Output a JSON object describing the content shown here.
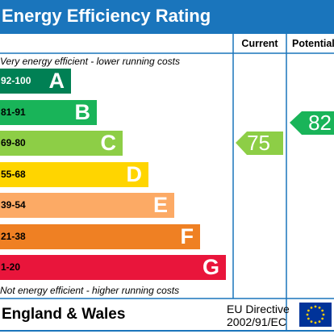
{
  "title": "Energy Efficiency Rating",
  "columns": {
    "current": "Current",
    "potential": "Potential"
  },
  "top_note": "Very energy efficient - lower running costs",
  "bottom_note": "Not energy efficient - higher running costs",
  "bands": [
    {
      "range": "92-100",
      "letter": "A",
      "color": "#008054",
      "range_color": "#ffffff"
    },
    {
      "range": "81-91",
      "letter": "B",
      "color": "#19b459",
      "range_color": "#000000"
    },
    {
      "range": "69-80",
      "letter": "C",
      "color": "#8dce46",
      "range_color": "#000000"
    },
    {
      "range": "55-68",
      "letter": "D",
      "color": "#ffd500",
      "range_color": "#000000"
    },
    {
      "range": "39-54",
      "letter": "E",
      "color": "#fcaa65",
      "range_color": "#000000"
    },
    {
      "range": "21-38",
      "letter": "F",
      "color": "#ef8023",
      "range_color": "#000000"
    },
    {
      "range": "1-20",
      "letter": "G",
      "color": "#e9153b",
      "range_color": "#000000"
    }
  ],
  "current": {
    "value": "75",
    "band": "C",
    "color": "#8dce46"
  },
  "potential": {
    "value": "82",
    "band": "B",
    "color": "#19b459"
  },
  "footer": {
    "region": "England & Wales",
    "directive_line1": "EU Directive",
    "directive_line2": "2002/91/EC"
  },
  "flag_icon": "eu-flag-icon"
}
